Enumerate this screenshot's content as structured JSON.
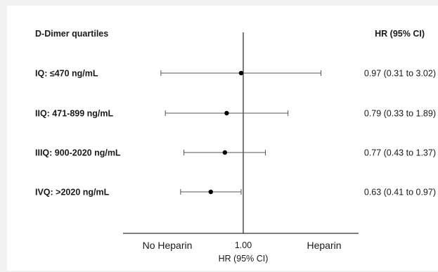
{
  "chart_data": {
    "type": "forest",
    "row_header": "D-Dimer quartiles",
    "value_header": "HR (95% CI)",
    "xlabel": "HR (95% CI)",
    "reference_tick": "1.00",
    "reference_value": 1.0,
    "left_side_label": "No Heparin",
    "right_side_label": "Heparin",
    "xlim_log": [
      0.25,
      4.0
    ],
    "rows": [
      {
        "label": "IQ: ≤470 ng/mL",
        "hr": 0.97,
        "lo": 0.31,
        "hi": 3.02,
        "text": "0.97 (0.31 to 3.02)"
      },
      {
        "label": "IIQ: 471-899 ng/mL",
        "hr": 0.79,
        "lo": 0.33,
        "hi": 1.89,
        "text": "0.79 (0.33 to 1.89)"
      },
      {
        "label": "IIIQ: 900-2020 ng/mL",
        "hr": 0.77,
        "lo": 0.43,
        "hi": 1.37,
        "text": "0.77 (0.43 to 1.37)"
      },
      {
        "label": "IVQ: >2020 ng/mL",
        "hr": 0.63,
        "lo": 0.41,
        "hi": 0.97,
        "text": "0.63 (0.41 to 0.97)"
      }
    ]
  }
}
